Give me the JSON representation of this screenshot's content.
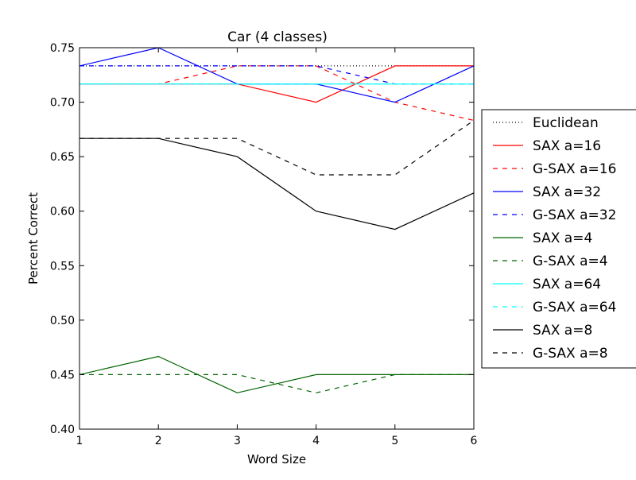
{
  "chart_data": {
    "type": "line",
    "title": "Car (4 classes)",
    "xlabel": "Word Size",
    "ylabel": "Percent Correct",
    "xlim": [
      1,
      6
    ],
    "ylim": [
      0.4,
      0.75
    ],
    "x_ticks": [
      "1",
      "2",
      "3",
      "4",
      "5",
      "6"
    ],
    "y_ticks": [
      "0.40",
      "0.45",
      "0.50",
      "0.55",
      "0.60",
      "0.65",
      "0.70",
      "0.75"
    ],
    "grid": false,
    "legend_position": "outside-right",
    "x": [
      1,
      2,
      3,
      4,
      5,
      6
    ],
    "series": [
      {
        "name": "Euclidean",
        "color": "#000000",
        "style": "dotted",
        "values": [
          0.7333,
          0.7333,
          0.7333,
          0.7333,
          0.7333,
          0.7333
        ]
      },
      {
        "name": "SAX a=16",
        "color": "#ff0000",
        "style": "solid",
        "values": [
          0.7167,
          0.7167,
          0.7167,
          0.7,
          0.7333,
          0.7333
        ]
      },
      {
        "name": "G-SAX a=16",
        "color": "#ff0000",
        "style": "dashed",
        "values": [
          0.7167,
          0.7167,
          0.7333,
          0.7333,
          0.7,
          0.6833
        ]
      },
      {
        "name": "SAX a=32",
        "color": "#0000ff",
        "style": "solid",
        "values": [
          0.7333,
          0.75,
          0.7167,
          0.7167,
          0.7,
          0.7333
        ]
      },
      {
        "name": "G-SAX a=32",
        "color": "#0000ff",
        "style": "dashed",
        "values": [
          0.7333,
          0.7333,
          0.7333,
          0.7333,
          0.7167,
          0.7167
        ]
      },
      {
        "name": "SAX a=4",
        "color": "#006400",
        "style": "solid",
        "values": [
          0.45,
          0.4667,
          0.4333,
          0.45,
          0.45,
          0.45
        ]
      },
      {
        "name": "G-SAX a=4",
        "color": "#006400",
        "style": "dashed",
        "values": [
          0.45,
          0.45,
          0.45,
          0.4333,
          0.45,
          0.45
        ]
      },
      {
        "name": "SAX a=64",
        "color": "#00ffff",
        "style": "solid",
        "values": [
          0.7167,
          0.7167,
          0.7167,
          0.7167,
          0.7167,
          0.7167
        ]
      },
      {
        "name": "G-SAX a=64",
        "color": "#00ffff",
        "style": "dashed",
        "values": [
          0.7167,
          0.7167,
          0.7167,
          0.7167,
          0.7167,
          0.7167
        ]
      },
      {
        "name": "SAX a=8",
        "color": "#000000",
        "style": "solid",
        "values": [
          0.6667,
          0.6667,
          0.65,
          0.6,
          0.5833,
          0.6167
        ]
      },
      {
        "name": "G-SAX a=8",
        "color": "#000000",
        "style": "dashed",
        "values": [
          0.6667,
          0.6667,
          0.6667,
          0.6333,
          0.6333,
          0.6833
        ]
      }
    ]
  }
}
